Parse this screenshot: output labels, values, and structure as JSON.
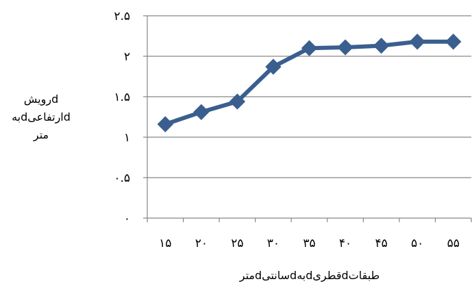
{
  "chart_data": {
    "type": "line",
    "categories": [
      "۱۵",
      "۲۰",
      "۲۵",
      "۳۰",
      "۳۵",
      "۴۰",
      "۴۵",
      "۵۰",
      "۵۵"
    ],
    "x": [
      15,
      20,
      25,
      30,
      35,
      40,
      45,
      50,
      55
    ],
    "series": [
      {
        "values": [
          1.16,
          1.31,
          1.44,
          1.87,
          2.1,
          2.11,
          2.13,
          2.18,
          2.18
        ]
      }
    ],
    "yticks": [
      0,
      0.5,
      1,
      1.5,
      2,
      2.5
    ],
    "ytick_labels": [
      "۰",
      "۰.۵",
      "۱",
      "۱.۵",
      "۲",
      "۲.۵"
    ],
    "ylim": [
      0,
      2.5
    ],
    "ylabel_lines": [
      "dرویش",
      "dارتفاعیdبه",
      "متر"
    ],
    "xlabel": "طبقاتdقطریdبهdسانتیdمتر",
    "grid": "horizontal",
    "legend": "none",
    "colors": {
      "series": "#3A5F8F",
      "grid": "#868686"
    }
  }
}
